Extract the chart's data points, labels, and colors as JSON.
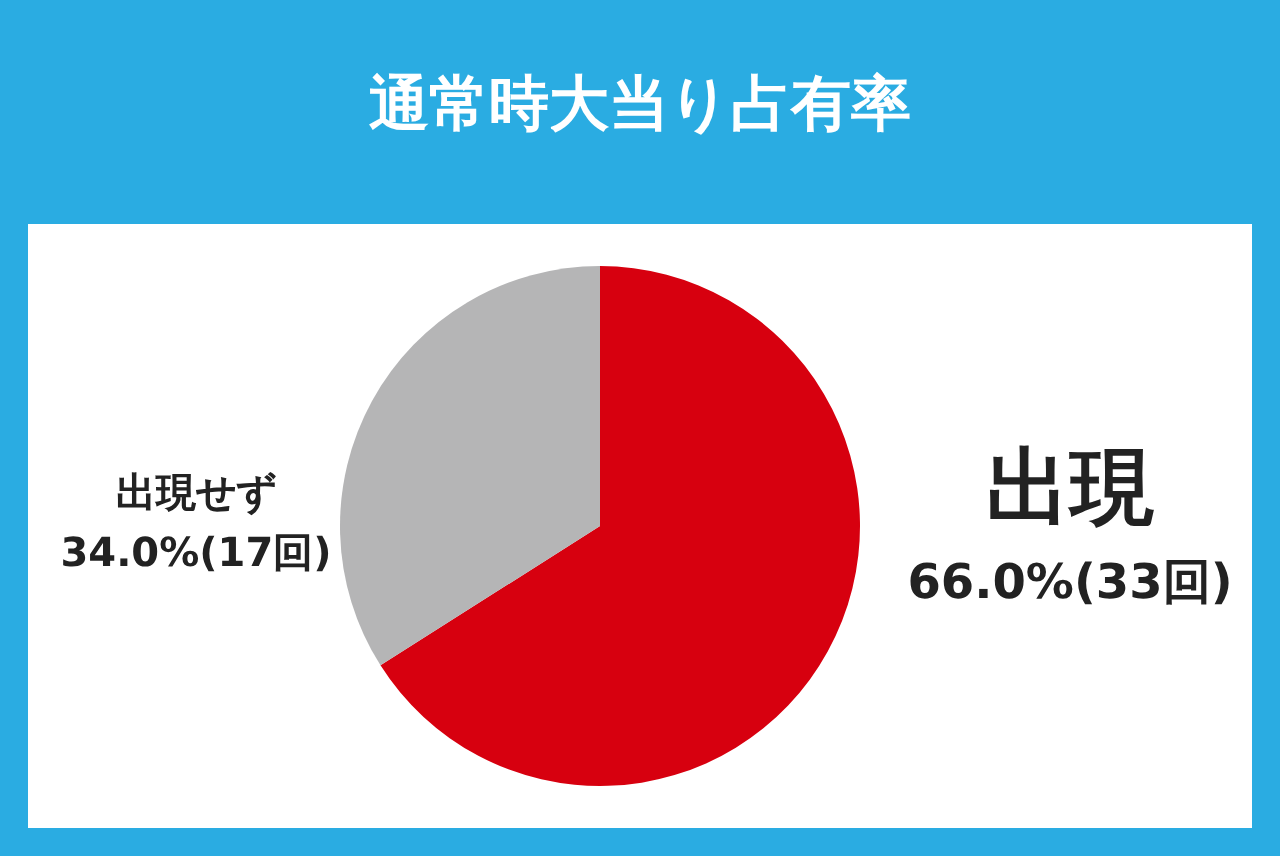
{
  "chart_data": {
    "type": "pie",
    "title": "通常時大当り占有率",
    "categories": [
      "出現",
      "出現せず"
    ],
    "values": [
      66.0,
      34.0
    ],
    "colors": [
      "#d7000f",
      "#b5b5b6"
    ],
    "value_labels": [
      "66.0%(33回)",
      "34.0%(17回)"
    ]
  }
}
